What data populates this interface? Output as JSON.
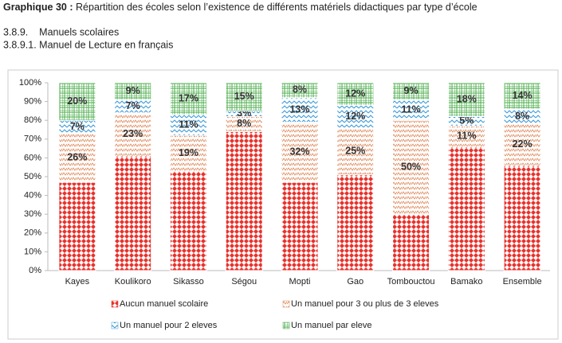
{
  "header": {
    "title_bold": "Graphique 30 :",
    "title": "Répartition des écoles selon l’existence de différents matériels didactiques par type d’école",
    "section": "3.8.9.    Manuels scolaires",
    "subsection": "3.8.9.1. Manuel de Lecture en français"
  },
  "chart_data": {
    "type": "stacked_bar",
    "categories": [
      "Kayes",
      "Koulikoro",
      "Sikasso",
      "Ségou",
      "Mopti",
      "Gao",
      "Tombouctou",
      "Bamako",
      "Ensemble"
    ],
    "series": [
      {
        "name": "Aucun manuel scolaire",
        "color": "#e8322c",
        "values": [
          47,
          61,
          53,
          74,
          47,
          51,
          30,
          66,
          56
        ]
      },
      {
        "name": "Un manuel pour 3 ou plus de 3 eleves",
        "color": "#e08a5c",
        "values": [
          26,
          23,
          19,
          8,
          32,
          25,
          50,
          11,
          22
        ],
        "value_labels": [
          "26%",
          "23%",
          "19%",
          "8%",
          "32%",
          "25%",
          "50%",
          "11%",
          "22%"
        ]
      },
      {
        "name": "Un manuel pour 2 eleves",
        "color": "#3a9ad9",
        "values": [
          7,
          7,
          11,
          3,
          13,
          12,
          11,
          5,
          8
        ],
        "value_labels": [
          "7%",
          "7%",
          "11%",
          "3%",
          "13%",
          "12%",
          "11%",
          "5%",
          "8%"
        ]
      },
      {
        "name": "Un manuel par eleve",
        "color": "#4cae4c",
        "values": [
          20,
          9,
          17,
          15,
          8,
          12,
          9,
          18,
          14
        ],
        "value_labels": [
          "20%",
          "9%",
          "17%",
          "15%",
          "8%",
          "12%",
          "9%",
          "18%",
          "14%"
        ]
      }
    ],
    "ylim": [
      0,
      100
    ],
    "yticks": [
      {
        "value": 0,
        "label": "0%"
      },
      {
        "value": 10,
        "label": "10%"
      },
      {
        "value": 20,
        "label": "20%"
      },
      {
        "value": 30,
        "label": "30%"
      },
      {
        "value": 40,
        "label": "40%"
      },
      {
        "value": 50,
        "label": "50%"
      },
      {
        "value": 60,
        "label": "60%"
      },
      {
        "value": 70,
        "label": "70%"
      },
      {
        "value": 80,
        "label": "80%"
      },
      {
        "value": 90,
        "label": "90%"
      },
      {
        "value": 100,
        "label": "100%"
      }
    ],
    "grid": false
  }
}
